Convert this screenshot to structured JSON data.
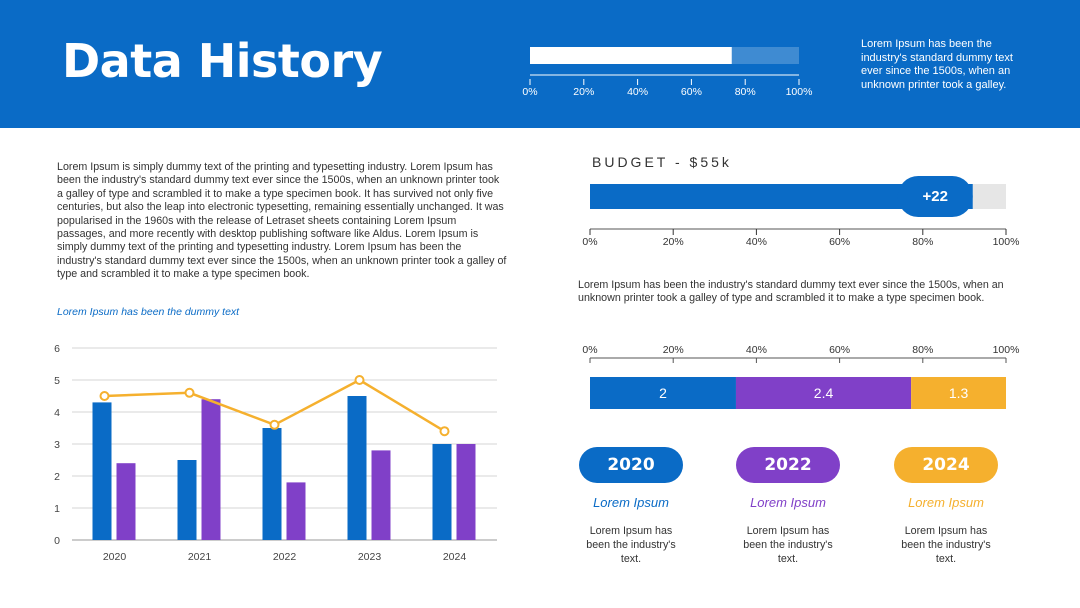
{
  "header": {
    "title": "Data History",
    "note": "Lorem Ipsum has been the industry's standard dummy text ever since the 1500s, when an unknown printer took a galley."
  },
  "intro_text": "Lorem Ipsum is simply dummy text of the printing and typesetting industry. Lorem Ipsum has been the industry's standard dummy text ever since the 1500s, when an unknown printer took a galley of type and scrambled it to make a type specimen book. It has survived not only five centuries, but also the leap into electronic typesetting, remaining essentially unchanged. It was popularised in the 1960s with the release of Letraset sheets containing Lorem Ipsum passages, and more recently with desktop publishing software like Aldus. Lorem Ipsum is simply dummy text of the printing and typesetting industry. Lorem Ipsum has been the industry's standard dummy text ever since the 1500s, when an unknown printer took a galley of type and scrambled it to make a type specimen book.",
  "intro_caption": "Lorem Ipsum has been the dummy text",
  "budget_title": "BUDGET - $55k",
  "mid_note": "Lorem Ipsum has been the industry's standard dummy text ever since the 1500s, when an unknown printer took a galley of type and scrambled it to make a type specimen book.",
  "colors": {
    "blue": "#0a6bc6",
    "purple": "#8040c8",
    "orange": "#f5b02e",
    "track": "#e6e6e6"
  },
  "years": [
    {
      "label": "2020",
      "title": "Lorem Ipsum",
      "desc": "Lorem Ipsum has been the industry's text.",
      "color": "#0a6bc6"
    },
    {
      "label": "2022",
      "title": "Lorem Ipsum",
      "desc": "Lorem Ipsum has been the industry's text.",
      "color": "#8040c8"
    },
    {
      "label": "2024",
      "title": "Lorem Ipsum",
      "desc": "Lorem Ipsum has been the industry's text.",
      "color": "#f5b02e"
    }
  ],
  "chart_data": [
    {
      "type": "bar",
      "title": "",
      "xlabel": "",
      "ylabel": "",
      "xlim": [
        0,
        100
      ],
      "ticks": [
        "0%",
        "20%",
        "40%",
        "60%",
        "80%",
        "100%"
      ],
      "series": [
        {
          "values": [
            75
          ]
        }
      ],
      "track_fill": 100,
      "orientation": "horizontal"
    },
    {
      "type": "bar",
      "title": "",
      "xlim": [
        0,
        100
      ],
      "ticks": [
        "0%",
        "20%",
        "40%",
        "60%",
        "80%",
        "100%"
      ],
      "series": [
        {
          "values": [
            92
          ]
        }
      ],
      "badge": "+22",
      "orientation": "horizontal"
    },
    {
      "type": "bar",
      "stacked": true,
      "xlim": [
        0,
        100
      ],
      "ticks": [
        "0%",
        "20%",
        "40%",
        "60%",
        "80%",
        "100%"
      ],
      "series": [
        {
          "values": [
            2
          ],
          "label": "2"
        },
        {
          "values": [
            2.4
          ],
          "label": "2.4"
        },
        {
          "values": [
            1.3
          ],
          "label": "1.3"
        }
      ],
      "orientation": "horizontal"
    },
    {
      "type": "bar",
      "categories": [
        "2020",
        "2021",
        "2022",
        "2023",
        "2024"
      ],
      "ylim": [
        0,
        6
      ],
      "yticks": [
        0,
        1,
        2,
        3,
        4,
        5,
        6
      ],
      "grid": true,
      "series": [
        {
          "type": "bar",
          "values": [
            4.3,
            2.5,
            3.5,
            4.5,
            3.0
          ]
        },
        {
          "type": "bar",
          "values": [
            2.4,
            4.4,
            1.8,
            2.8,
            3.0
          ]
        },
        {
          "type": "line",
          "values": [
            4.5,
            4.6,
            3.6,
            5.0,
            3.4
          ]
        }
      ]
    }
  ]
}
